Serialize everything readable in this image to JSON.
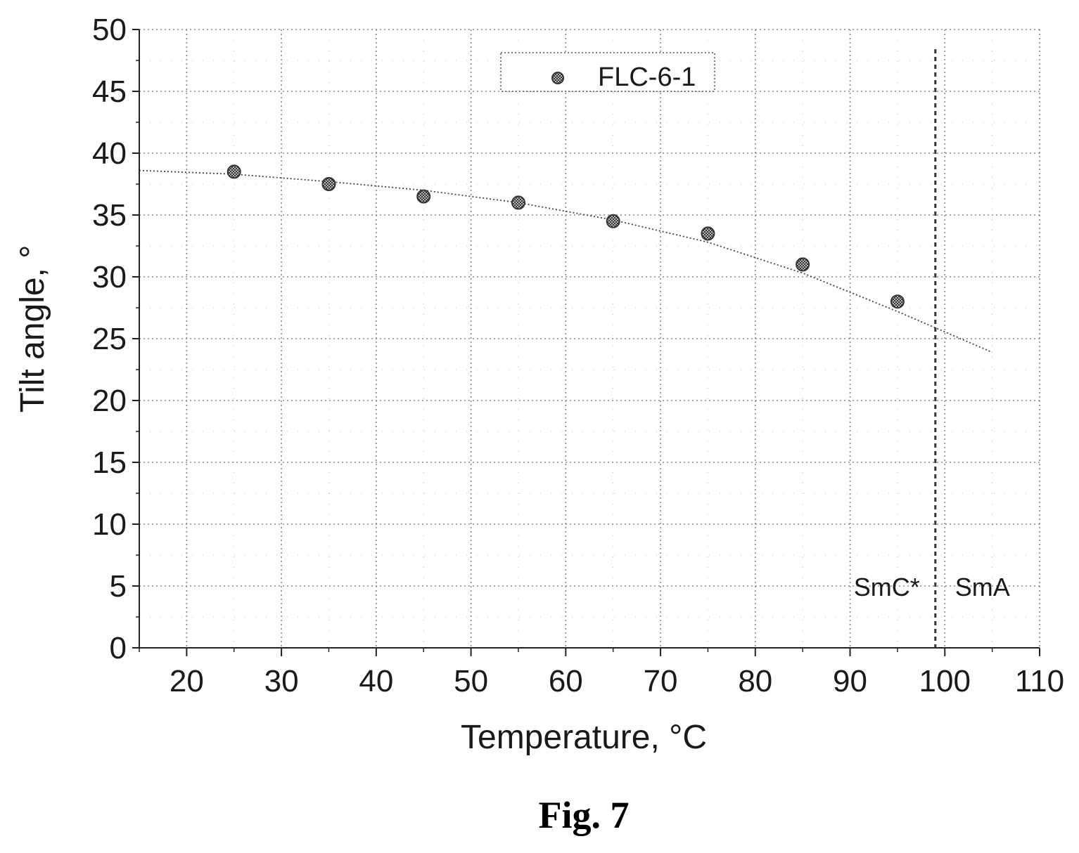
{
  "chart_data": {
    "type": "scatter",
    "xlabel": "Temperature, °C",
    "ylabel": "Tilt angle, °",
    "xlim": [
      15,
      110
    ],
    "ylim": [
      0,
      50
    ],
    "x_ticks": [
      20,
      30,
      40,
      50,
      60,
      70,
      80,
      90,
      100,
      110
    ],
    "y_ticks": [
      0,
      5,
      10,
      15,
      20,
      25,
      30,
      35,
      40,
      45,
      50
    ],
    "grid": true,
    "legend_position": "top-center",
    "series": [
      {
        "name": "FLC-6-1",
        "marker": "hatched-circle",
        "color": "#333333",
        "x": [
          25,
          35,
          45,
          55,
          65,
          75,
          85,
          95
        ],
        "y": [
          38.5,
          37.5,
          36.5,
          36.0,
          34.5,
          33.5,
          31.0,
          28.0
        ]
      }
    ],
    "fit_curve": {
      "style": "dotted",
      "x": [
        15,
        25,
        35,
        45,
        55,
        65,
        75,
        85,
        95,
        105
      ],
      "y": [
        38.6,
        38.3,
        37.7,
        37.0,
        36.0,
        34.6,
        32.8,
        30.3,
        27.2,
        23.9
      ]
    },
    "phase_boundary": {
      "x": 99,
      "style": "dashed",
      "label_left": "SmC*",
      "label_right": "SmA",
      "label_y": 5
    },
    "caption": "Fig. 7"
  }
}
